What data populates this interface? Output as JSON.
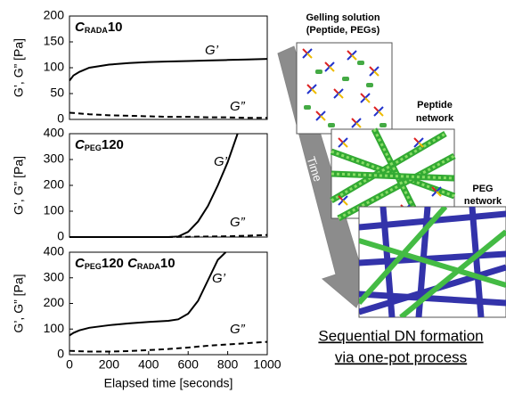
{
  "chart_data": [
    {
      "type": "line",
      "title": [
        "C",
        "RADA",
        "10"
      ],
      "ylabel": "G’, G” [Pa]",
      "xlim": [
        0,
        1000
      ],
      "ylim": [
        0,
        200
      ],
      "yticks": [
        0,
        50,
        100,
        150,
        200
      ],
      "series": [
        {
          "name": "G’",
          "color": "#000000",
          "dash": false,
          "x": [
            0,
            20,
            50,
            100,
            200,
            300,
            400,
            500,
            600,
            700,
            800,
            900,
            1000
          ],
          "values": [
            75,
            85,
            92,
            100,
            106,
            109,
            111,
            112,
            113,
            114,
            115,
            116,
            117
          ]
        },
        {
          "name": "G”",
          "color": "#000000",
          "dash": true,
          "x": [
            0,
            100,
            200,
            300,
            400,
            500,
            600,
            700,
            800,
            900,
            1000
          ],
          "values": [
            13,
            10,
            8,
            7,
            6,
            5,
            5,
            4,
            4,
            3,
            3
          ]
        }
      ]
    },
    {
      "type": "line",
      "title": [
        "C",
        "PEG",
        "120"
      ],
      "ylabel": "G’, G” [Pa]",
      "xlim": [
        0,
        1000
      ],
      "ylim": [
        0,
        400
      ],
      "yticks": [
        0,
        100,
        200,
        300,
        400
      ],
      "series": [
        {
          "name": "G’",
          "color": "#000000",
          "dash": false,
          "x": [
            0,
            100,
            200,
            300,
            400,
            500,
            550,
            600,
            650,
            700,
            750,
            800,
            850
          ],
          "values": [
            0,
            0,
            0,
            0,
            0,
            0,
            2,
            20,
            60,
            120,
            200,
            290,
            400
          ]
        },
        {
          "name": "G”",
          "color": "#000000",
          "dash": true,
          "x": [
            0,
            100,
            200,
            300,
            400,
            500,
            600,
            700,
            800,
            900,
            1000
          ],
          "values": [
            0,
            0,
            0,
            0,
            0,
            0,
            1,
            2,
            3,
            5,
            8
          ]
        }
      ]
    },
    {
      "type": "line",
      "title": [
        "C",
        "PEG",
        "120 ",
        "C",
        "RADA",
        "10"
      ],
      "ylabel": "G’, G” [Pa]",
      "xlabel": "Elapsed time [seconds]",
      "xlim": [
        0,
        1000
      ],
      "xticks": [
        0,
        200,
        400,
        600,
        800,
        1000
      ],
      "ylim": [
        0,
        400
      ],
      "yticks": [
        0,
        100,
        200,
        300,
        400
      ],
      "series": [
        {
          "name": "G’",
          "color": "#000000",
          "dash": false,
          "x": [
            0,
            20,
            50,
            100,
            200,
            300,
            400,
            500,
            550,
            600,
            650,
            700,
            750,
            790
          ],
          "values": [
            75,
            85,
            95,
            105,
            115,
            122,
            128,
            132,
            138,
            160,
            210,
            290,
            370,
            400
          ]
        },
        {
          "name": "G”",
          "color": "#000000",
          "dash": true,
          "x": [
            0,
            100,
            200,
            300,
            400,
            500,
            600,
            700,
            800,
            900,
            1000
          ],
          "values": [
            15,
            12,
            12,
            14,
            18,
            22,
            28,
            35,
            40,
            45,
            50
          ]
        }
      ]
    }
  ],
  "schematic": {
    "solution": [
      "Gelling solution",
      "(Peptide, PEGs)"
    ],
    "peptide": [
      "Peptide",
      "network"
    ],
    "peg": [
      "PEG",
      "network"
    ],
    "arrow": "Time",
    "caption": [
      "Sequential DN formation",
      "via one-pot process"
    ]
  }
}
